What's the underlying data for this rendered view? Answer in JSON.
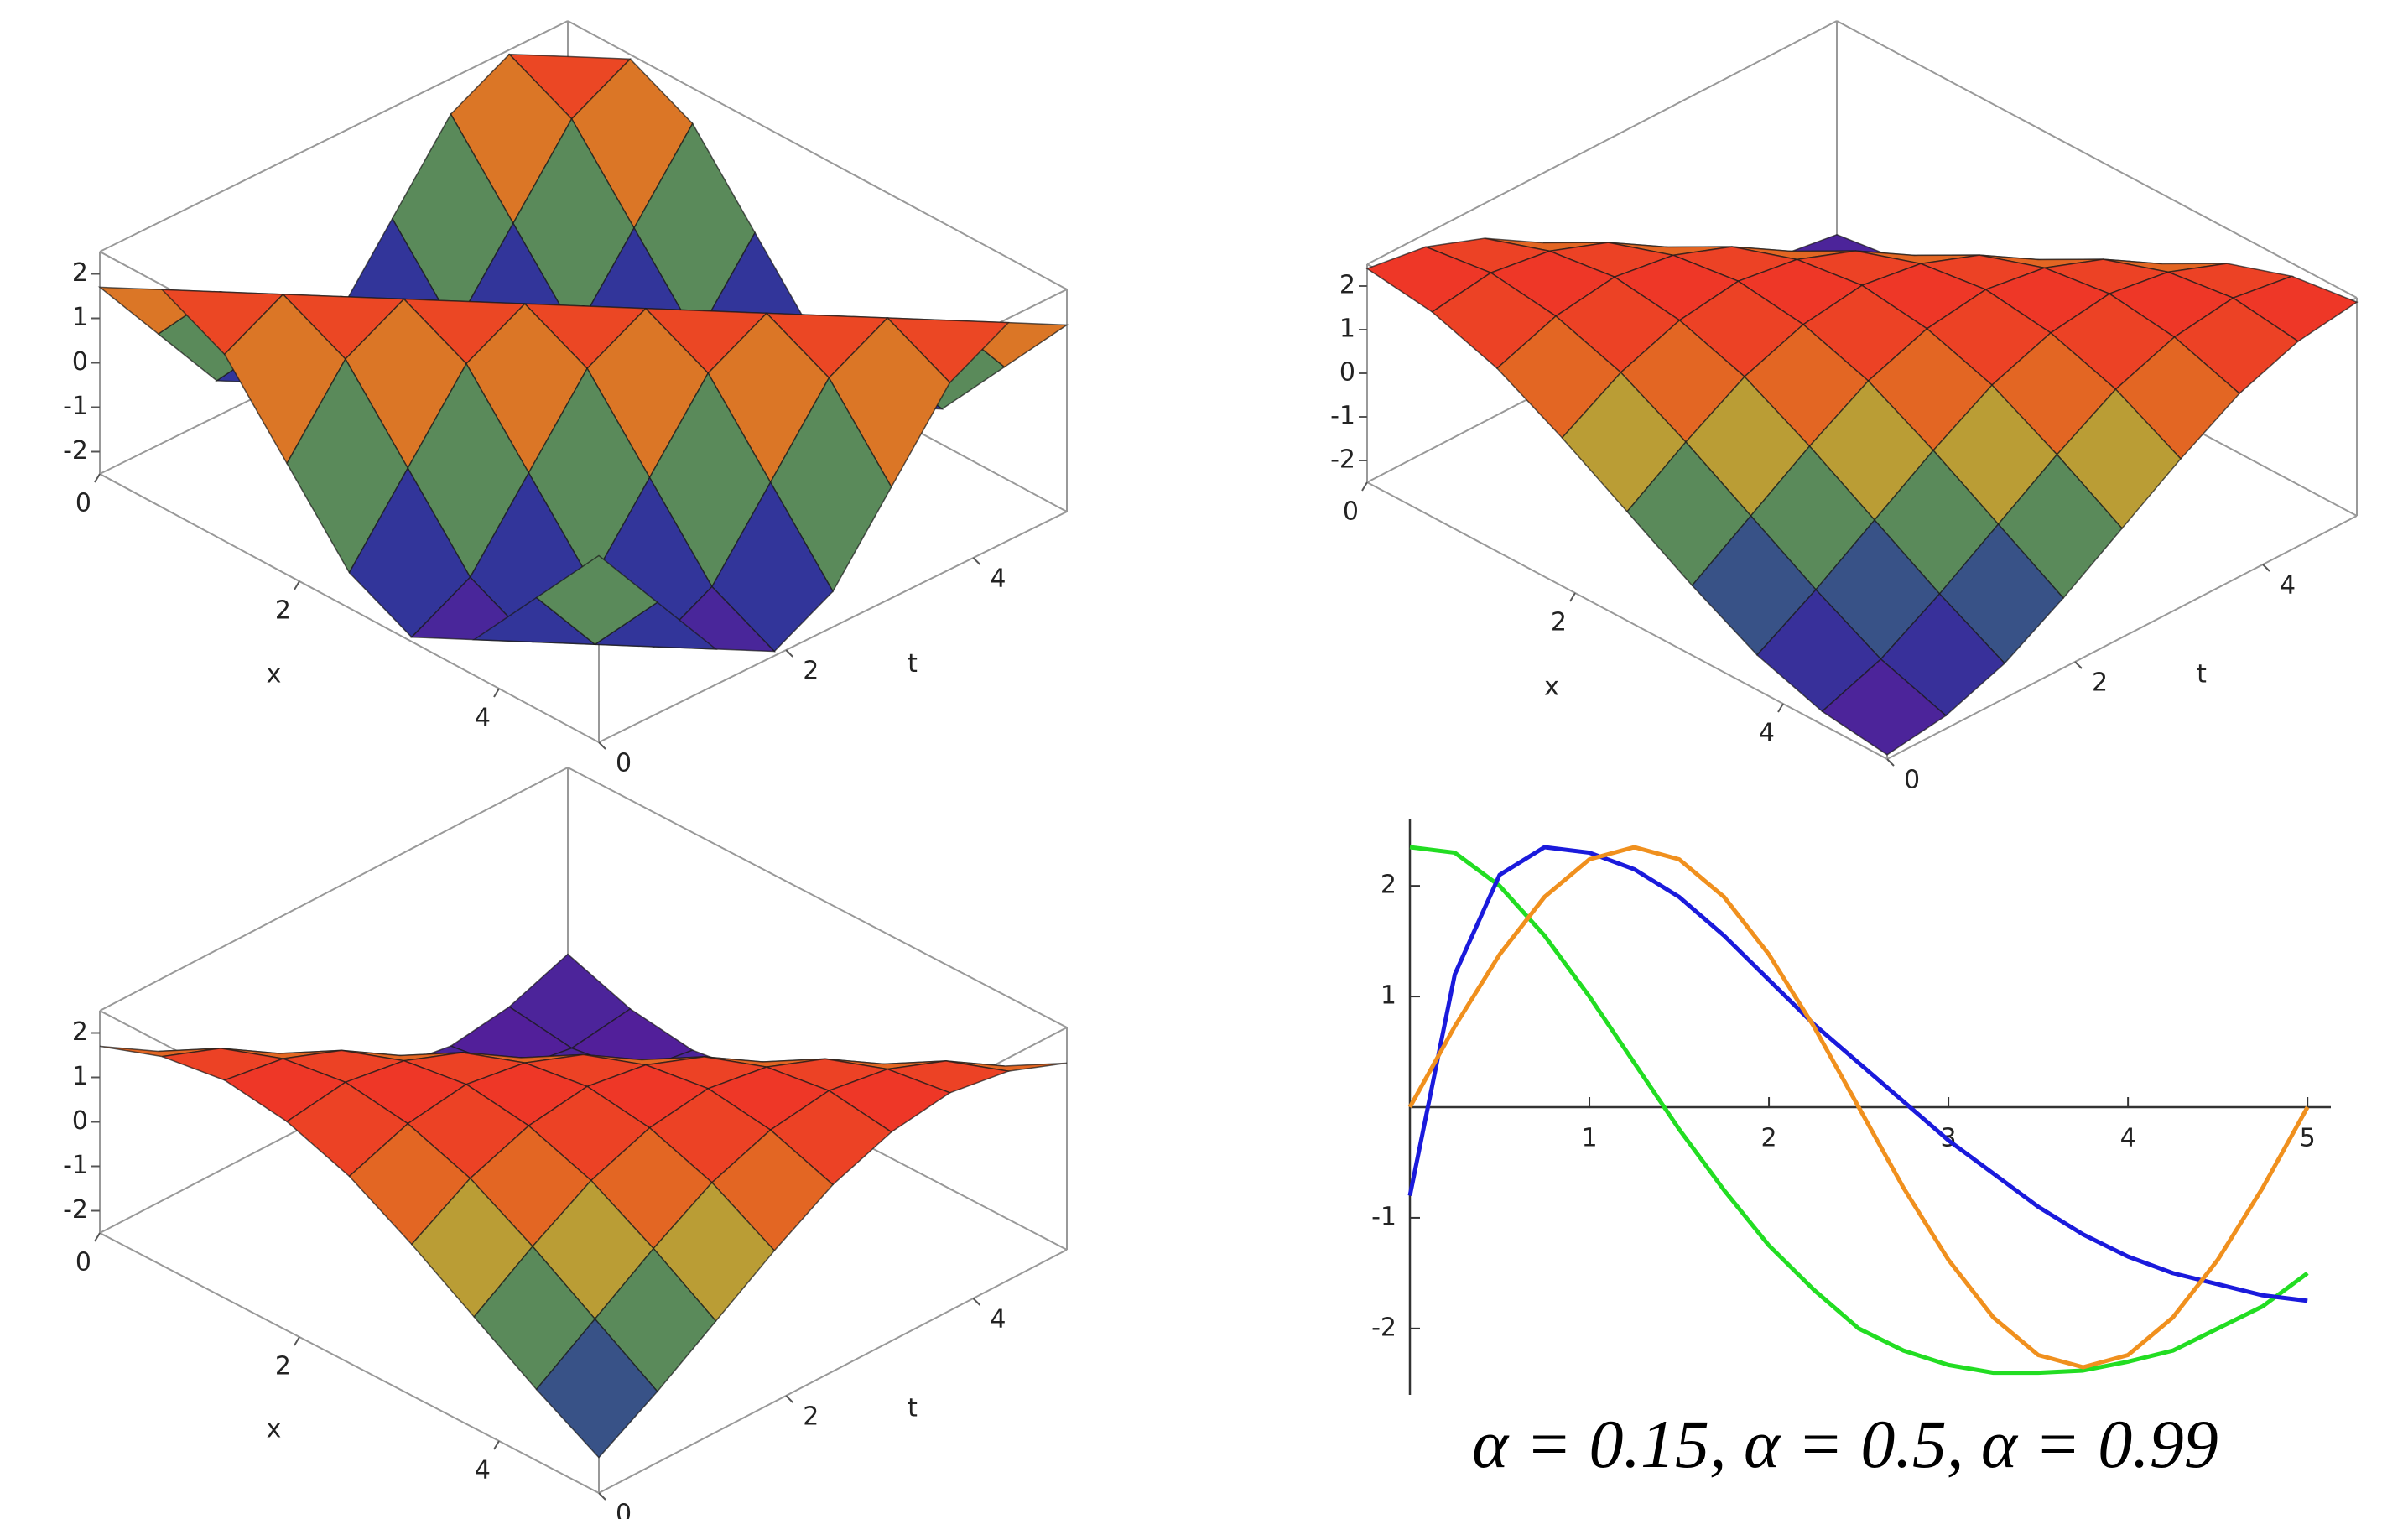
{
  "chart_data": [
    {
      "type": "surface",
      "xlabel": "x",
      "ylabel": "t",
      "x": [
        0,
        0.625,
        1.25,
        1.875,
        2.5,
        3.125,
        3.75,
        4.375,
        5
      ],
      "y": [
        0,
        0.625,
        1.25,
        1.875,
        2.5,
        3.125,
        3.75,
        4.375,
        5
      ],
      "z": [
        [
          1.7,
          2.4,
          1.7,
          0,
          -1.7,
          -2.4,
          -1.7,
          0,
          1.7
        ],
        [
          0,
          1.7,
          2.4,
          1.7,
          0,
          -1.7,
          -2.4,
          -1.7,
          0
        ],
        [
          -1.7,
          0,
          1.7,
          2.4,
          1.7,
          0,
          -1.7,
          -2.4,
          -1.7
        ],
        [
          -2.4,
          -1.7,
          0,
          1.7,
          2.4,
          1.7,
          0,
          -1.7,
          -2.4
        ],
        [
          -1.7,
          -2.4,
          -1.7,
          0,
          1.7,
          2.4,
          1.7,
          0,
          -1.7
        ],
        [
          0,
          -1.7,
          -2.4,
          -1.7,
          0,
          1.7,
          2.4,
          1.7,
          0
        ],
        [
          1.7,
          0,
          -1.7,
          -2.4,
          -1.7,
          0,
          1.7,
          2.4,
          1.7
        ],
        [
          2.4,
          1.7,
          0,
          -1.7,
          -2.4,
          -1.7,
          0,
          1.7,
          2.4
        ],
        [
          1.7,
          2.4,
          1.7,
          0,
          -1.7,
          -2.4,
          -1.7,
          0,
          1.7
        ]
      ],
      "xlim": [
        0,
        5
      ],
      "ylim": [
        0,
        5
      ],
      "zlim": [
        -2.5,
        2.5
      ],
      "xticks": [
        0,
        2,
        4
      ],
      "yticks": [
        0,
        2,
        4
      ],
      "zticks": [
        -2,
        -1,
        0,
        1,
        2
      ]
    },
    {
      "type": "surface",
      "xlabel": "x",
      "ylabel": "t",
      "x": [
        0,
        0.625,
        1.25,
        1.875,
        2.5,
        3.125,
        3.75,
        4.375,
        5
      ],
      "y": [
        0,
        0.625,
        1.25,
        1.875,
        2.5,
        3.125,
        3.75,
        4.375,
        5
      ],
      "z": [
        [
          2.4,
          2.2,
          1.7,
          0.9,
          0,
          -0.9,
          -1.7,
          -2.2,
          -2.4
        ],
        [
          2.2,
          2.4,
          2.2,
          1.7,
          0.9,
          0,
          -0.9,
          -1.7,
          -2.2
        ],
        [
          1.7,
          2.2,
          2.4,
          2.2,
          1.7,
          0.9,
          0,
          -0.9,
          -1.7
        ],
        [
          0.9,
          1.7,
          2.2,
          2.4,
          2.2,
          1.7,
          0.9,
          0,
          -0.9
        ],
        [
          0,
          0.9,
          1.7,
          2.2,
          2.4,
          2.2,
          1.7,
          0.9,
          0
        ],
        [
          -0.9,
          0,
          0.9,
          1.7,
          2.2,
          2.4,
          2.2,
          1.7,
          0.9
        ],
        [
          -1.7,
          -0.9,
          0,
          0.9,
          1.7,
          2.2,
          2.4,
          2.2,
          1.7
        ],
        [
          -2.2,
          -1.7,
          -0.9,
          0,
          0.9,
          1.7,
          2.2,
          2.4,
          2.2
        ],
        [
          -2.4,
          -2.2,
          -1.7,
          -0.9,
          0,
          0.9,
          1.7,
          2.2,
          2.4
        ]
      ],
      "xlim": [
        0,
        5
      ],
      "ylim": [
        0,
        5
      ],
      "zlim": [
        -2.5,
        2.5
      ],
      "xticks": [
        0,
        2,
        4
      ],
      "yticks": [
        0,
        2,
        4
      ],
      "zticks": [
        -2,
        -1,
        0,
        1,
        2
      ]
    },
    {
      "type": "surface",
      "xlabel": "x",
      "ylabel": "t",
      "x": [
        0,
        0.625,
        1.25,
        1.875,
        2.5,
        3.125,
        3.75,
        4.375,
        5
      ],
      "y": [
        0,
        0.625,
        1.25,
        1.875,
        2.5,
        3.125,
        3.75,
        4.375,
        5
      ],
      "z": [
        [
          1.7,
          2.2,
          2.4,
          2.2,
          1.7,
          0.9,
          0,
          -0.9,
          -1.7
        ],
        [
          0.9,
          1.7,
          2.2,
          2.4,
          2.2,
          1.7,
          0.9,
          0,
          -0.9
        ],
        [
          0,
          0.9,
          1.7,
          2.2,
          2.4,
          2.2,
          1.7,
          0.9,
          0
        ],
        [
          -0.9,
          0,
          0.9,
          1.7,
          2.2,
          2.4,
          2.2,
          1.7,
          0.9
        ],
        [
          -1.7,
          -0.9,
          0,
          0.9,
          1.7,
          2.2,
          2.4,
          2.2,
          1.7
        ],
        [
          -2.2,
          -1.7,
          -0.9,
          0,
          0.9,
          1.7,
          2.2,
          2.4,
          2.2
        ],
        [
          -2.4,
          -2.2,
          -1.7,
          -0.9,
          0,
          0.9,
          1.7,
          2.2,
          2.4
        ],
        [
          -2.2,
          -2.4,
          -2.2,
          -1.7,
          -0.9,
          0,
          0.9,
          1.7,
          2.2
        ],
        [
          -1.7,
          -2.2,
          -2.4,
          -2.2,
          -1.7,
          -0.9,
          0,
          0.9,
          1.7
        ]
      ],
      "xlim": [
        0,
        5
      ],
      "ylim": [
        0,
        5
      ],
      "zlim": [
        -2.5,
        2.5
      ],
      "xticks": [
        0,
        2,
        4
      ],
      "yticks": [
        0,
        2,
        4
      ],
      "zticks": [
        -2,
        -1,
        0,
        1,
        2
      ]
    },
    {
      "type": "line",
      "caption": "α = 0.15, α = 0.5, α = 0.99",
      "x": [
        0,
        0.25,
        0.5,
        0.75,
        1,
        1.25,
        1.5,
        1.75,
        2,
        2.25,
        2.5,
        2.75,
        3,
        3.25,
        3.5,
        3.75,
        4,
        4.25,
        4.5,
        4.75,
        5
      ],
      "series": [
        {
          "color": "#22dd22",
          "values": [
            2.35,
            2.3,
            2.0,
            1.55,
            1.0,
            0.4,
            -0.2,
            -0.75,
            -1.25,
            -1.65,
            -2.0,
            -2.2,
            -2.33,
            -2.4,
            -2.4,
            -2.38,
            -2.3,
            -2.2,
            -2.0,
            -1.8,
            -1.5
          ]
        },
        {
          "color": "#1a1adc",
          "values": [
            -0.8,
            1.2,
            2.1,
            2.35,
            2.3,
            2.15,
            1.9,
            1.55,
            1.15,
            0.75,
            0.4,
            0.05,
            -0.3,
            -0.6,
            -0.9,
            -1.15,
            -1.35,
            -1.5,
            -1.6,
            -1.7,
            -1.75
          ]
        },
        {
          "color": "#f0901e",
          "values": [
            0,
            0.73,
            1.38,
            1.9,
            2.24,
            2.35,
            2.24,
            1.9,
            1.38,
            0.73,
            0,
            -0.73,
            -1.38,
            -1.9,
            -2.24,
            -2.35,
            -2.24,
            -1.9,
            -1.38,
            -0.73,
            0
          ]
        }
      ],
      "xlim": [
        0,
        5.13
      ],
      "ylim": [
        -2.6,
        2.6
      ],
      "xticks": [
        1,
        2,
        3,
        4,
        5
      ],
      "yticks": [
        -2,
        -1,
        1,
        2
      ]
    }
  ]
}
